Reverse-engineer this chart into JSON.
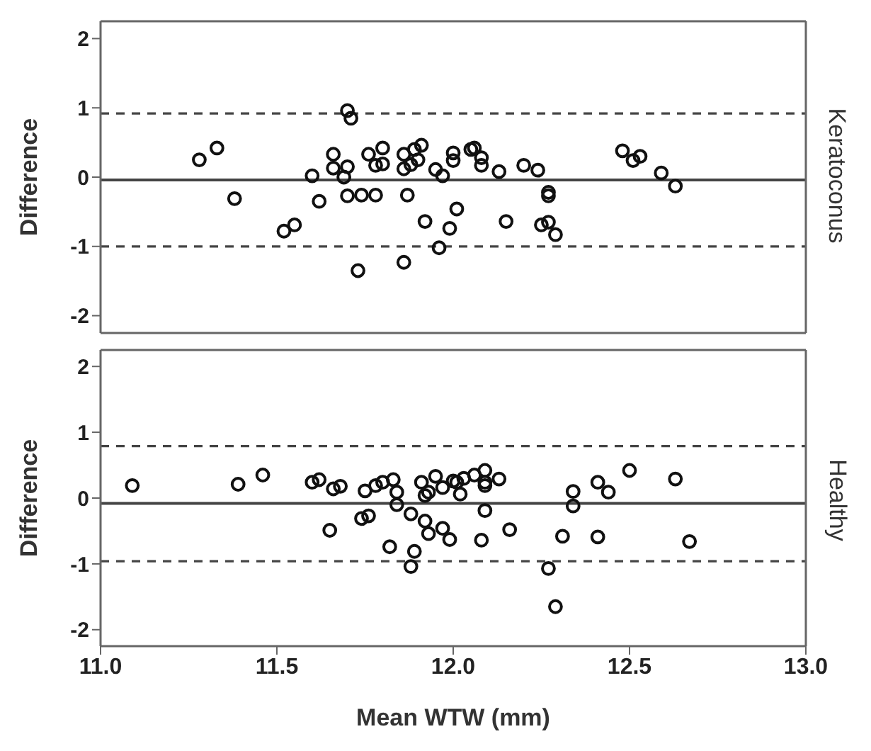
{
  "chart_data": [
    {
      "type": "scatter",
      "annotations": [
        "Keratoconus"
      ],
      "ylabel": "Difference",
      "marker": "circle",
      "grid": false,
      "tick_labels": "y",
      "xlim": [
        11.0,
        13.0
      ],
      "ylim": [
        -2.25,
        2.25
      ],
      "yticks": [
        -2,
        -1,
        0,
        1,
        2
      ],
      "ref_lines": [
        {
          "axis": "y",
          "value": -0.04,
          "line_style": "solid",
          "color": "#444444"
        },
        {
          "axis": "y",
          "value": 0.92,
          "line_style": "dashed",
          "color": "#444444"
        },
        {
          "axis": "y",
          "value": -1.0,
          "line_style": "dashed",
          "color": "#444444"
        }
      ],
      "series": [
        {
          "color": "#111111",
          "x": [
            11.28,
            11.33,
            11.38,
            11.52,
            11.55,
            11.6,
            11.62,
            11.66,
            11.66,
            11.7,
            11.71,
            11.7,
            11.69,
            11.7,
            11.74,
            11.78,
            11.73,
            11.76,
            11.8,
            11.78,
            11.8,
            11.86,
            11.86,
            11.87,
            11.86,
            11.89,
            11.88,
            11.9,
            11.91,
            11.92,
            11.95,
            11.97,
            11.96,
            11.99,
            12.01,
            12.0,
            12.0,
            12.05,
            12.06,
            12.08,
            12.08,
            12.13,
            12.2,
            12.24,
            12.27,
            12.27,
            12.15,
            12.25,
            12.27,
            12.29,
            12.48,
            12.51,
            12.53,
            12.59,
            12.63
          ],
          "values": [
            0.25,
            0.42,
            -0.31,
            -0.78,
            -0.69,
            0.02,
            -0.35,
            0.33,
            0.13,
            0.96,
            0.85,
            0.15,
            0.0,
            -0.27,
            -0.26,
            -0.26,
            -1.35,
            0.33,
            0.42,
            0.17,
            0.19,
            0.12,
            0.33,
            -0.26,
            -1.23,
            0.4,
            0.18,
            0.25,
            0.46,
            -0.64,
            0.11,
            0.02,
            -1.02,
            -0.74,
            -0.46,
            0.35,
            0.24,
            0.4,
            0.42,
            0.28,
            0.17,
            0.08,
            0.17,
            0.1,
            -0.22,
            -0.27,
            -0.64,
            -0.69,
            -0.65,
            -0.83,
            0.38,
            0.24,
            0.3,
            0.06,
            -0.13
          ]
        }
      ]
    },
    {
      "type": "scatter",
      "annotations": [
        "Healthy"
      ],
      "xlabel": "Mean WTW (mm)",
      "ylabel": "Difference",
      "marker": "circle",
      "grid": false,
      "xlim": [
        11.0,
        13.0
      ],
      "xticks": [
        {
          "value": 11.0,
          "label": "11.0"
        },
        {
          "value": 11.5,
          "label": "11.5"
        },
        {
          "value": 12.0,
          "label": "12.0"
        },
        {
          "value": 12.5,
          "label": "12.5"
        },
        {
          "value": 13.0,
          "label": "13.0"
        }
      ],
      "ylim": [
        -2.25,
        2.25
      ],
      "yticks": [
        -2,
        -1,
        0,
        1,
        2
      ],
      "ref_lines": [
        {
          "axis": "y",
          "value": -0.08,
          "line_style": "solid",
          "color": "#444444"
        },
        {
          "axis": "y",
          "value": 0.79,
          "line_style": "dashed",
          "color": "#444444"
        },
        {
          "axis": "y",
          "value": -0.96,
          "line_style": "dashed",
          "color": "#444444"
        }
      ],
      "series": [
        {
          "color": "#111111",
          "x": [
            11.09,
            11.39,
            11.46,
            11.6,
            11.62,
            11.66,
            11.68,
            11.65,
            11.74,
            11.76,
            11.75,
            11.78,
            11.8,
            11.83,
            11.84,
            11.84,
            11.82,
            11.88,
            11.92,
            11.93,
            11.97,
            11.99,
            11.89,
            11.88,
            11.91,
            11.92,
            11.93,
            11.95,
            11.97,
            12.02,
            12.01,
            12.0,
            12.03,
            12.06,
            12.09,
            12.09,
            12.09,
            12.13,
            12.09,
            12.08,
            12.16,
            12.27,
            12.29,
            12.31,
            12.34,
            12.34,
            12.41,
            12.41,
            12.44,
            12.5,
            12.63,
            12.67
          ],
          "values": [
            0.19,
            0.21,
            0.35,
            0.24,
            0.28,
            0.14,
            0.18,
            -0.49,
            -0.31,
            -0.27,
            0.11,
            0.19,
            0.24,
            0.28,
            0.09,
            -0.1,
            -0.74,
            -0.24,
            -0.35,
            -0.54,
            -0.46,
            -0.63,
            -0.81,
            -1.04,
            0.24,
            0.04,
            0.09,
            0.33,
            0.16,
            0.06,
            0.24,
            0.26,
            0.3,
            0.35,
            0.42,
            0.24,
            0.19,
            0.29,
            -0.19,
            -0.64,
            -0.48,
            -1.07,
            -1.65,
            -0.58,
            -0.12,
            0.1,
            -0.59,
            0.24,
            0.09,
            0.42,
            0.29,
            -0.66
          ]
        }
      ]
    }
  ]
}
